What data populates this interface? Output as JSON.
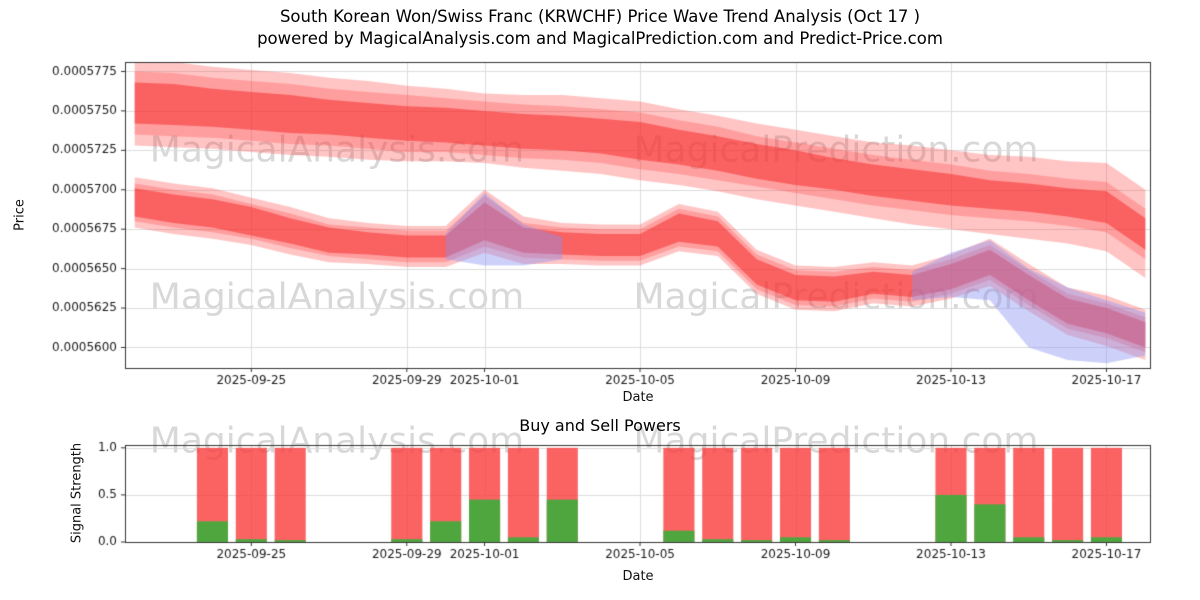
{
  "header": {
    "title": "South Korean Won/Swiss Franc (KRWCHF) Price Wave Trend Analysis (Oct 17 )",
    "subtitle": "powered by MagicalAnalysis.com and MagicalPrediction.com and Predict-Price.com"
  },
  "watermarks": {
    "analysis": "MagicalAnalysis.com",
    "prediction": "MagicalPrediction.com"
  },
  "chart_data": [
    {
      "type": "area",
      "name": "price_wave_trend",
      "ylabel": "Price",
      "xlabel": "Date",
      "ylim": [
        0.0005587,
        0.0005781
      ],
      "yticks": [
        0.00056,
        0.0005625,
        0.000565,
        0.0005675,
        0.00057,
        0.0005725,
        0.000575,
        0.0005775
      ],
      "ytick_labels": [
        "0.0005600",
        "0.0005625",
        "0.0005650",
        "0.0005675",
        "0.0005700",
        "0.0005725",
        "0.0005750",
        "0.0005775"
      ],
      "xticks": [
        "2025-09-25",
        "2025-09-29",
        "2025-10-01",
        "2025-10-05",
        "2025-10-09",
        "2025-10-13",
        "2025-10-17"
      ],
      "grid": true,
      "dates": [
        "2025-09-22",
        "2025-09-23",
        "2025-09-24",
        "2025-09-25",
        "2025-09-26",
        "2025-09-27",
        "2025-09-28",
        "2025-09-29",
        "2025-09-30",
        "2025-10-01",
        "2025-10-02",
        "2025-10-03",
        "2025-10-04",
        "2025-10-05",
        "2025-10-06",
        "2025-10-07",
        "2025-10-08",
        "2025-10-09",
        "2025-10-10",
        "2025-10-11",
        "2025-10-12",
        "2025-10-13",
        "2025-10-14",
        "2025-10-15",
        "2025-10-16",
        "2025-10-17",
        "2025-10-18"
      ],
      "series": [
        {
          "name": "upper-wave-outer-band",
          "kind": "band",
          "color": "#ff3b3b",
          "alpha": 0.3,
          "upper": [
            0.0005782,
            0.0005781,
            0.0005778,
            0.0005776,
            0.0005774,
            0.0005771,
            0.0005769,
            0.0005766,
            0.0005764,
            0.0005761,
            0.000576,
            0.000576,
            0.0005758,
            0.0005756,
            0.0005751,
            0.0005747,
            0.0005742,
            0.0005738,
            0.0005734,
            0.000573,
            0.0005728,
            0.0005725,
            0.0005722,
            0.0005721,
            0.0005718,
            0.0005717,
            0.00057
          ],
          "lower": [
            0.0005728,
            0.0005727,
            0.0005726,
            0.0005724,
            0.0005722,
            0.0005721,
            0.0005719,
            0.0005718,
            0.0005718,
            0.0005717,
            0.0005714,
            0.0005712,
            0.000571,
            0.0005706,
            0.0005703,
            0.0005699,
            0.0005694,
            0.000569,
            0.0005686,
            0.0005682,
            0.0005678,
            0.0005675,
            0.0005672,
            0.0005669,
            0.0005666,
            0.0005661,
            0.0005644
          ]
        },
        {
          "name": "upper-wave-mid-band",
          "kind": "band",
          "color": "#ff3b3b",
          "alpha": 0.28,
          "upper": [
            0.0005775,
            0.0005774,
            0.0005771,
            0.0005769,
            0.0005767,
            0.0005764,
            0.0005762,
            0.000576,
            0.0005758,
            0.0005756,
            0.0005754,
            0.0005753,
            0.0005751,
            0.0005749,
            0.0005744,
            0.000574,
            0.0005734,
            0.000573,
            0.0005726,
            0.0005722,
            0.0005719,
            0.0005716,
            0.0005712,
            0.000571,
            0.0005707,
            0.0005705,
            0.0005688
          ],
          "lower": [
            0.0005735,
            0.0005734,
            0.0005733,
            0.0005731,
            0.0005729,
            0.0005728,
            0.0005726,
            0.0005724,
            0.0005724,
            0.0005722,
            0.000572,
            0.0005719,
            0.0005717,
            0.0005713,
            0.000571,
            0.0005706,
            0.0005702,
            0.0005698,
            0.0005694,
            0.000569,
            0.0005687,
            0.0005684,
            0.0005682,
            0.000568,
            0.0005677,
            0.0005673,
            0.0005656
          ]
        },
        {
          "name": "upper-wave-core-band",
          "kind": "band",
          "color": "#f52f2f",
          "alpha": 0.55,
          "upper": [
            0.0005768,
            0.0005767,
            0.0005764,
            0.0005762,
            0.000576,
            0.0005757,
            0.0005755,
            0.0005753,
            0.0005752,
            0.000575,
            0.0005748,
            0.0005747,
            0.0005745,
            0.0005743,
            0.0005738,
            0.0005734,
            0.0005729,
            0.0005725,
            0.000572,
            0.0005716,
            0.0005713,
            0.000571,
            0.0005706,
            0.0005704,
            0.0005701,
            0.0005699,
            0.0005682
          ],
          "lower": [
            0.0005742,
            0.0005741,
            0.000574,
            0.0005738,
            0.0005736,
            0.0005735,
            0.0005733,
            0.0005731,
            0.000573,
            0.0005728,
            0.0005726,
            0.0005725,
            0.0005723,
            0.0005719,
            0.0005716,
            0.0005712,
            0.0005707,
            0.0005703,
            0.00057,
            0.0005696,
            0.0005693,
            0.000569,
            0.0005688,
            0.0005686,
            0.0005683,
            0.0005679,
            0.0005662
          ]
        },
        {
          "name": "lower-wave-outer-band",
          "kind": "band",
          "color": "#ff3b3b",
          "alpha": 0.3,
          "upper": [
            0.0005708,
            0.0005704,
            0.0005701,
            0.0005695,
            0.0005689,
            0.0005682,
            0.0005679,
            0.0005677,
            0.0005677,
            0.00057,
            0.0005683,
            0.0005679,
            0.0005678,
            0.0005678,
            0.0005691,
            0.0005686,
            0.0005662,
            0.0005652,
            0.0005651,
            0.0005654,
            0.0005652,
            0.0005659,
            0.0005669,
            0.0005653,
            0.0005638,
            0.0005633,
            0.0005624
          ],
          "lower": [
            0.0005676,
            0.0005672,
            0.0005669,
            0.0005665,
            0.0005659,
            0.0005654,
            0.0005653,
            0.0005651,
            0.0005651,
            0.000566,
            0.0005653,
            0.0005653,
            0.0005652,
            0.0005652,
            0.0005661,
            0.0005658,
            0.0005634,
            0.0005624,
            0.0005623,
            0.0005628,
            0.0005626,
            0.0005631,
            0.0005639,
            0.0005623,
            0.0005608,
            0.0005601,
            0.0005592
          ]
        },
        {
          "name": "lower-wave-mid-band",
          "kind": "band",
          "color": "#ff3b3b",
          "alpha": 0.28,
          "upper": [
            0.0005704,
            0.00057,
            0.0005697,
            0.0005691,
            0.0005685,
            0.0005678,
            0.0005676,
            0.0005674,
            0.0005674,
            0.0005696,
            0.0005679,
            0.0005676,
            0.0005675,
            0.0005675,
            0.0005688,
            0.0005683,
            0.0005659,
            0.0005649,
            0.0005648,
            0.0005651,
            0.0005649,
            0.0005656,
            0.0005665,
            0.0005649,
            0.0005634,
            0.0005628,
            0.0005619
          ],
          "lower": [
            0.000568,
            0.0005676,
            0.0005673,
            0.0005669,
            0.0005663,
            0.0005658,
            0.0005656,
            0.0005654,
            0.0005654,
            0.0005664,
            0.0005657,
            0.0005656,
            0.0005655,
            0.0005655,
            0.0005664,
            0.0005661,
            0.0005637,
            0.0005627,
            0.0005626,
            0.0005631,
            0.0005629,
            0.0005634,
            0.0005643,
            0.0005627,
            0.0005612,
            0.0005606,
            0.0005597
          ]
        },
        {
          "name": "lower-wave-core-band",
          "kind": "band",
          "color": "#f52f2f",
          "alpha": 0.55,
          "upper": [
            0.0005701,
            0.0005697,
            0.0005694,
            0.0005689,
            0.0005682,
            0.0005676,
            0.0005673,
            0.0005671,
            0.0005671,
            0.0005692,
            0.0005676,
            0.0005673,
            0.0005672,
            0.0005672,
            0.0005685,
            0.000568,
            0.0005656,
            0.0005646,
            0.0005645,
            0.0005648,
            0.0005646,
            0.0005653,
            0.0005662,
            0.0005646,
            0.0005631,
            0.0005625,
            0.0005616
          ],
          "lower": [
            0.0005683,
            0.0005679,
            0.0005676,
            0.0005671,
            0.0005666,
            0.000566,
            0.0005659,
            0.0005657,
            0.0005657,
            0.0005668,
            0.000566,
            0.0005659,
            0.0005658,
            0.0005658,
            0.0005667,
            0.0005664,
            0.000564,
            0.000563,
            0.0005629,
            0.0005634,
            0.0005632,
            0.0005637,
            0.0005646,
            0.000563,
            0.0005615,
            0.0005609,
            0.00056
          ]
        },
        {
          "name": "forecast-blue-band",
          "kind": "band",
          "color": "#8891f2",
          "alpha": 0.42,
          "upper": [
            null,
            null,
            null,
            null,
            null,
            null,
            null,
            null,
            0.0005672,
            0.0005698,
            0.0005678,
            0.000567,
            null,
            null,
            null,
            null,
            null,
            null,
            null,
            null,
            0.0005648,
            0.000566,
            0.0005668,
            0.000565,
            0.0005638,
            0.000563,
            0.0005622
          ],
          "lower": [
            null,
            null,
            null,
            null,
            null,
            null,
            null,
            null,
            0.0005656,
            0.0005652,
            0.0005652,
            0.0005656,
            null,
            null,
            null,
            null,
            null,
            null,
            null,
            null,
            0.000563,
            0.0005632,
            0.000563,
            0.00056,
            0.0005592,
            0.000559,
            0.0005595
          ]
        }
      ]
    },
    {
      "type": "bar",
      "name": "buy_sell_powers",
      "title": "Buy and Sell Powers",
      "ylabel": "Signal Strength",
      "xlabel": "Date",
      "ylim": [
        0,
        1.03
      ],
      "yticks": [
        0,
        0.5,
        1.0
      ],
      "ytick_labels": [
        "0.0",
        "0.5",
        "1.0"
      ],
      "xticks": [
        "2025-09-25",
        "2025-09-29",
        "2025-10-01",
        "2025-10-05",
        "2025-10-09",
        "2025-10-13",
        "2025-10-17"
      ],
      "grid": true,
      "sell_color": "#fa3c3c",
      "sell_alpha": 0.8,
      "buy_color": "#3cae3c",
      "buy_alpha": 0.9,
      "bars": [
        {
          "date": "2025-09-24",
          "sell": 1.0,
          "buy": 0.22
        },
        {
          "date": "2025-09-25",
          "sell": 1.0,
          "buy": 0.03
        },
        {
          "date": "2025-09-26",
          "sell": 1.0,
          "buy": 0.02
        },
        {
          "date": "2025-09-29",
          "sell": 1.0,
          "buy": 0.03
        },
        {
          "date": "2025-09-30",
          "sell": 1.0,
          "buy": 0.22
        },
        {
          "date": "2025-10-01",
          "sell": 1.0,
          "buy": 0.45
        },
        {
          "date": "2025-10-02",
          "sell": 1.0,
          "buy": 0.05
        },
        {
          "date": "2025-10-03",
          "sell": 1.0,
          "buy": 0.45
        },
        {
          "date": "2025-10-06",
          "sell": 1.0,
          "buy": 0.12
        },
        {
          "date": "2025-10-07",
          "sell": 1.0,
          "buy": 0.03
        },
        {
          "date": "2025-10-08",
          "sell": 1.0,
          "buy": 0.02
        },
        {
          "date": "2025-10-09",
          "sell": 1.0,
          "buy": 0.05
        },
        {
          "date": "2025-10-10",
          "sell": 1.0,
          "buy": 0.02
        },
        {
          "date": "2025-10-13",
          "sell": 1.0,
          "buy": 0.5
        },
        {
          "date": "2025-10-14",
          "sell": 1.0,
          "buy": 0.4
        },
        {
          "date": "2025-10-15",
          "sell": 1.0,
          "buy": 0.05
        },
        {
          "date": "2025-10-16",
          "sell": 1.0,
          "buy": 0.02
        },
        {
          "date": "2025-10-17",
          "sell": 1.0,
          "buy": 0.05
        }
      ]
    }
  ]
}
